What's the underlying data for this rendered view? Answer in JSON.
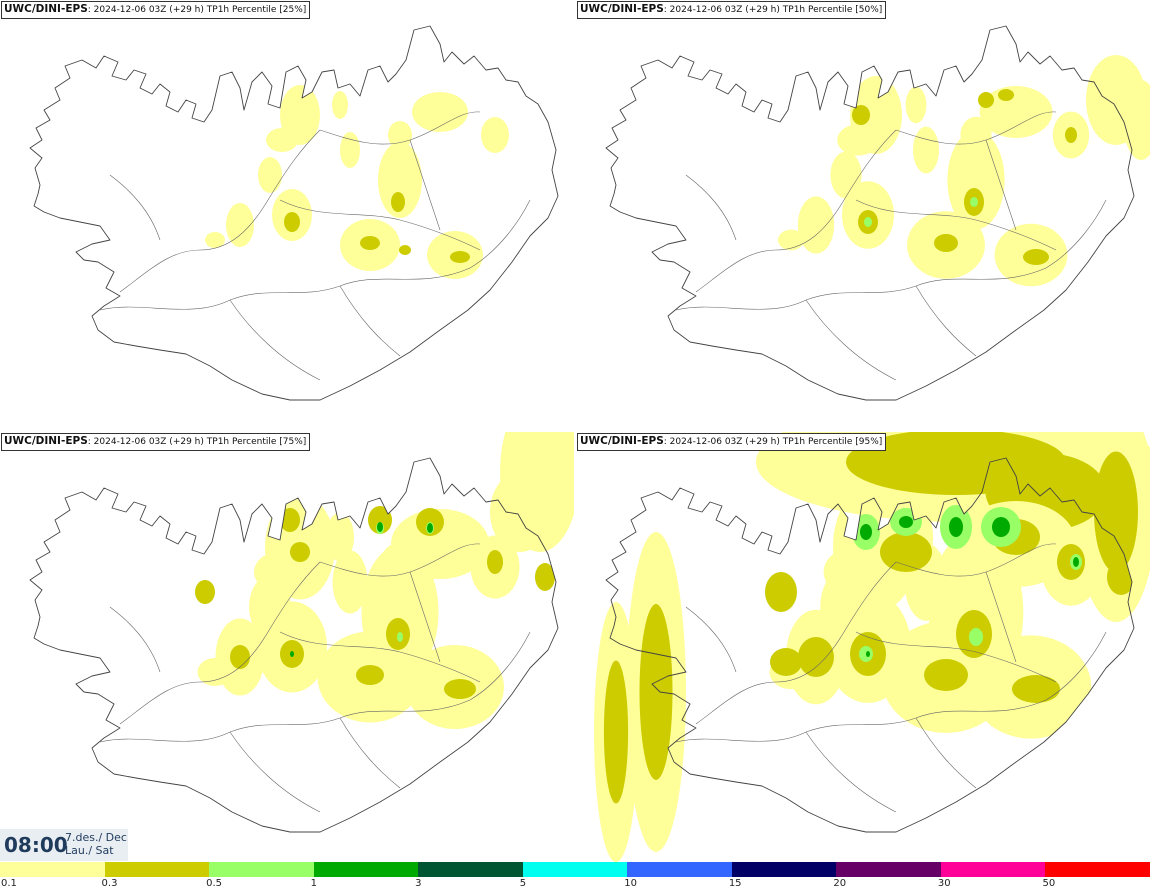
{
  "panels": [
    {
      "source": "UWC/DINI-EPS",
      "run": ": 2024-12-06 03Z (+29 h)",
      "field": "TP1h Percentile [25%]"
    },
    {
      "source": "UWC/DINI-EPS",
      "run": ": 2024-12-06 03Z (+29 h)",
      "field": "TP1h Percentile [50%]"
    },
    {
      "source": "UWC/DINI-EPS",
      "run": ": 2024-12-06 03Z (+29 h)",
      "field": "TP1h Percentile [75%]"
    },
    {
      "source": "UWC/DINI-EPS",
      "run": ": 2024-12-06 03Z (+29 h)",
      "field": "TP1h Percentile [95%]"
    }
  ],
  "valid_time": {
    "time": "08:00",
    "date_line1": "7.des./ Dec",
    "date_line2": "Lau./ Sat"
  },
  "legend": {
    "colors": [
      "#ffff99",
      "#cccc00",
      "#99ff66",
      "#00aa00",
      "#005533",
      "#00ffee",
      "#3366ff",
      "#000066",
      "#660066",
      "#ff0099",
      "#ff0000"
    ],
    "labels": [
      "0.1",
      "0.3",
      "0.5",
      "1",
      "3",
      "5",
      "10",
      "15",
      "20",
      "30",
      "50"
    ]
  }
}
